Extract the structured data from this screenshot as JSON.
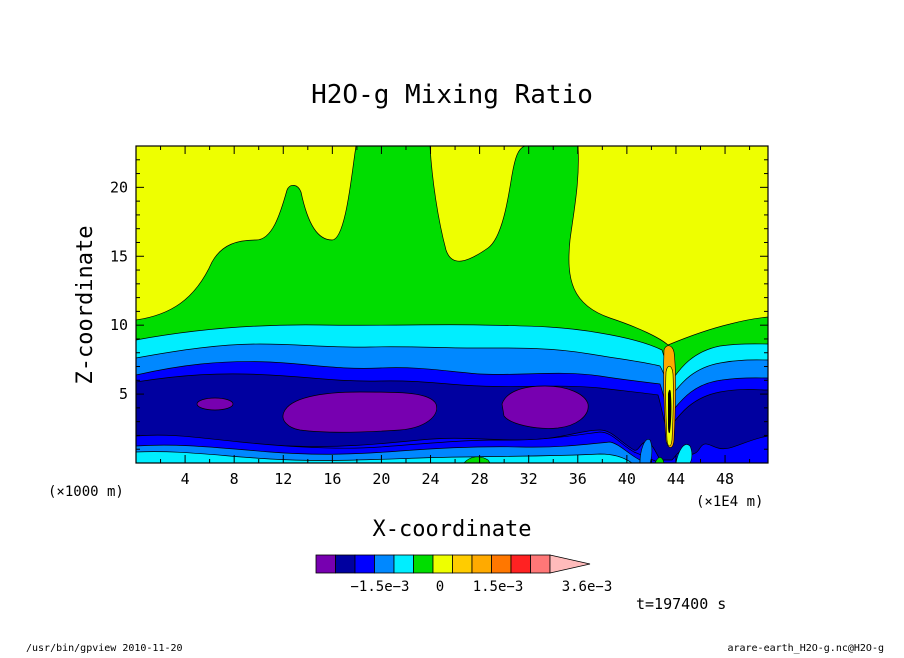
{
  "chart_data": {
    "type": "heatmap",
    "title": "H2O-g Mixing Ratio",
    "xlabel": "X-coordinate",
    "ylabel": "Z-coordinate",
    "x_unit": "(×1000 m)",
    "x_multiplier": "(×1E4 m)",
    "xlim": [
      0,
      51.5
    ],
    "ylim": [
      0,
      23
    ],
    "xticks": [
      "4",
      "8",
      "12",
      "16",
      "20",
      "24",
      "28",
      "32",
      "36",
      "40",
      "44",
      "48"
    ],
    "xtick_values": [
      4,
      8,
      12,
      16,
      20,
      24,
      28,
      32,
      36,
      40,
      44,
      48
    ],
    "yticks": [
      "5",
      "10",
      "15",
      "20"
    ],
    "ytick_values": [
      5,
      10,
      15,
      20
    ],
    "colorbar": {
      "colors": [
        "#7700b0",
        "#0000a0",
        "#0000ff",
        "#0088ff",
        "#00eeff",
        "#00dd00",
        "#eeff00",
        "#ffcc00",
        "#ffaa00",
        "#ff7700",
        "#ff2222",
        "#ff7777",
        "#ffbbbb"
      ],
      "tick_labels": [
        "−1.5e−3",
        "0",
        "1.5e−3",
        "3.6e−3"
      ]
    },
    "time_label": "t=197400 s"
  },
  "footer": {
    "left": "/usr/bin/gpview   2010-11-20",
    "right": "arare-earth_H2O-g.nc@H2O-g"
  }
}
